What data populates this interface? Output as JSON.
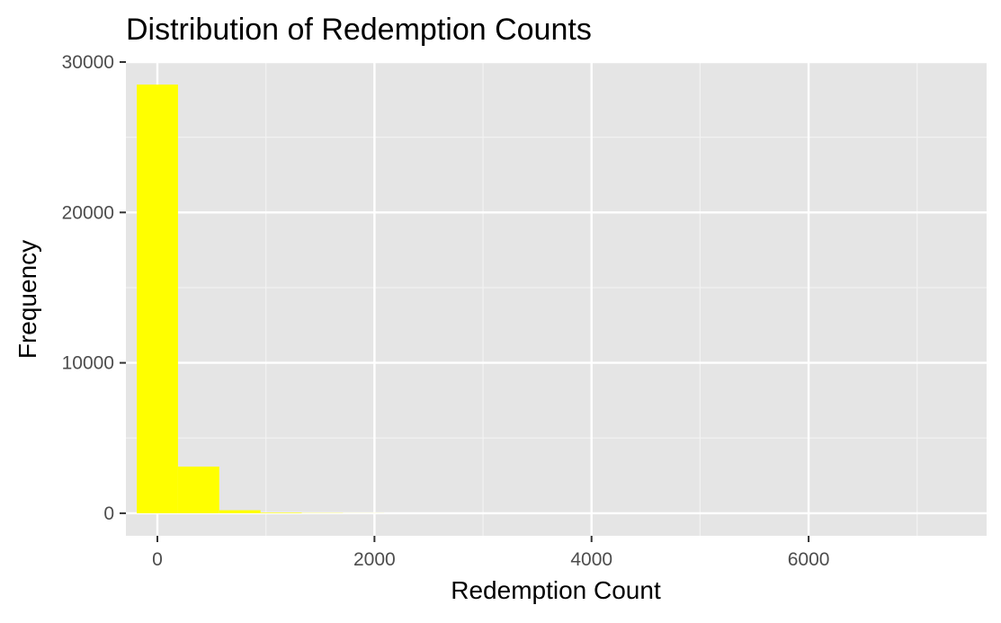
{
  "chart_data": {
    "type": "bar",
    "title": "Distribution of Redemption Counts",
    "xlabel": "Redemption Count",
    "ylabel": "Frequency",
    "xlim": [
      -290,
      7640
    ],
    "ylim": [
      -1500,
      30000
    ],
    "x_ticks": [
      0,
      2000,
      4000,
      6000
    ],
    "x_tick_labels": [
      "0",
      "2000",
      "4000",
      "6000"
    ],
    "y_ticks": [
      0,
      10000,
      20000,
      30000
    ],
    "y_tick_labels": [
      "0",
      "10000",
      "20000",
      "30000"
    ],
    "grid": true,
    "bin_width": 380,
    "bins": [
      {
        "x0": -190,
        "x1": 190,
        "count": 28500
      },
      {
        "x0": 190,
        "x1": 570,
        "count": 3100
      },
      {
        "x0": 570,
        "x1": 950,
        "count": 200
      },
      {
        "x0": 950,
        "x1": 1330,
        "count": 40
      },
      {
        "x0": 1330,
        "x1": 1710,
        "count": 15
      },
      {
        "x0": 1710,
        "x1": 2090,
        "count": 5
      }
    ],
    "colors": {
      "bar_fill": "#ffff00",
      "panel_background": "#e5e5e5",
      "grid_major": "#ffffff",
      "grid_minor": "#f2f2f2",
      "tick_text": "#4d4d4d",
      "axis_tick": "#333333"
    }
  }
}
